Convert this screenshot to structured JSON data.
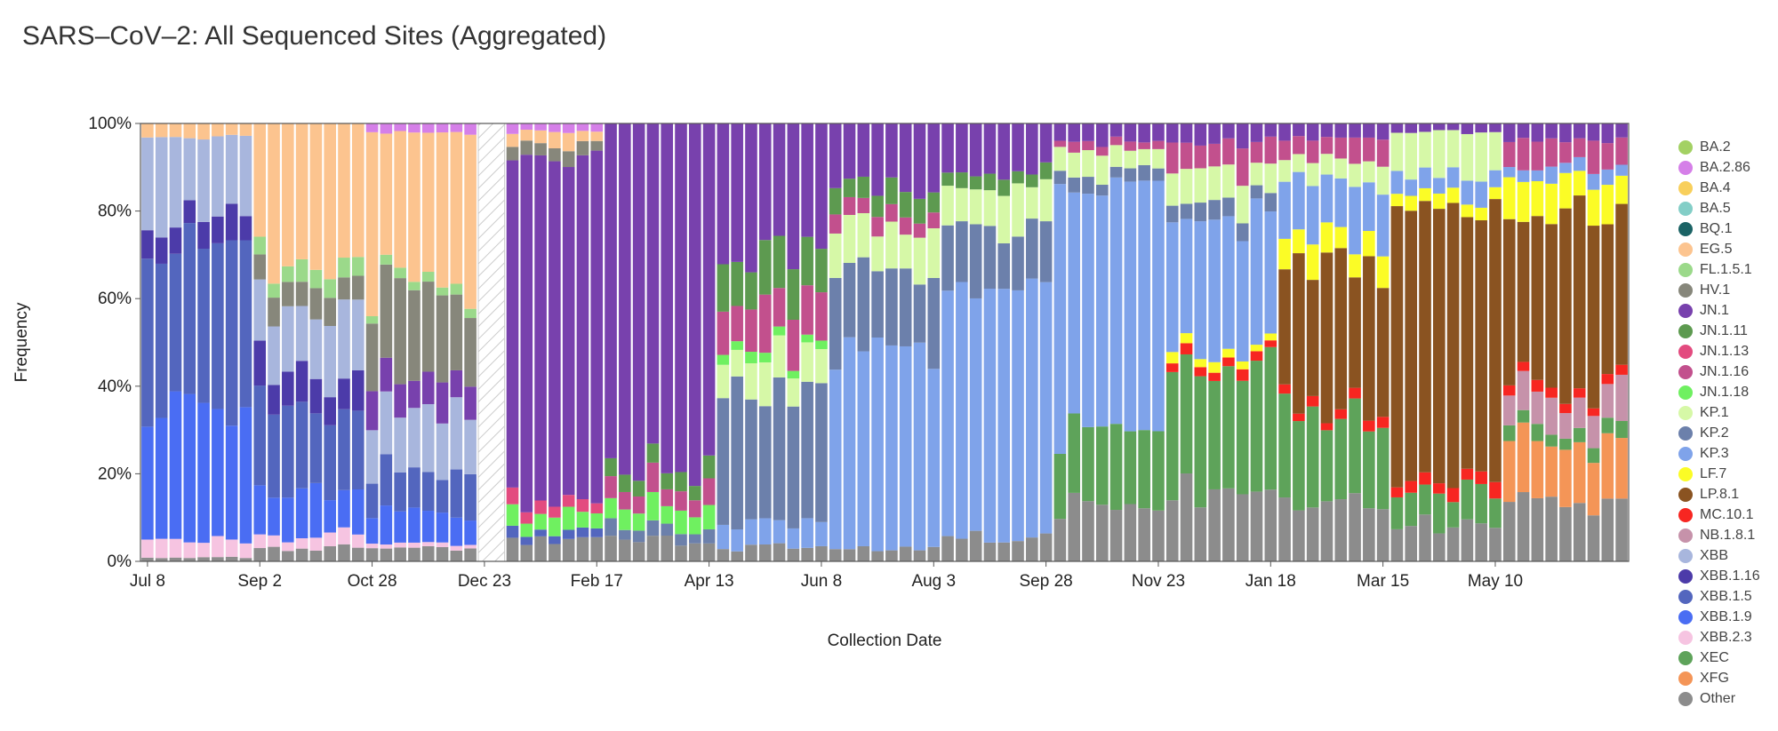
{
  "chart_data": {
    "type": "bar",
    "stacked": true,
    "title": "SARS–CoV–2: All Sequenced Sites (Aggregated)",
    "xlabel": "Collection Date",
    "ylabel": "Frequency",
    "ylim": [
      0,
      1
    ],
    "ytick_labels": [
      "0%",
      "20%",
      "40%",
      "60%",
      "80%",
      "100%"
    ],
    "ytick_values": [
      0,
      0.2,
      0.4,
      0.6,
      0.8,
      1.0
    ],
    "xtick_labels": [
      "Jul 8",
      "Sep 2",
      "Oct 28",
      "Dec 23",
      "Feb 17",
      "Apr 13",
      "Jun 8",
      "Aug 3",
      "Sep 28",
      "Nov 23",
      "Jan 18",
      "Mar 15",
      "May 10"
    ],
    "xtick_week_index": [
      0,
      8,
      16,
      24,
      32,
      40,
      48,
      56,
      64,
      72,
      80,
      88,
      96
    ],
    "n_weeks": 106,
    "missing_weeks": [
      24,
      25
    ],
    "grid": false,
    "legend_position": "right",
    "variants": [
      "BA.2",
      "BA.2.86",
      "BA.4",
      "BA.5",
      "BQ.1",
      "EG.5",
      "FL.1.5.1",
      "HV.1",
      "JN.1",
      "JN.1.11",
      "JN.1.13",
      "JN.1.16",
      "JN.1.18",
      "KP.1",
      "KP.2",
      "KP.3",
      "LF.7",
      "LP.8.1",
      "MC.10.1",
      "NB.1.8.1",
      "XBB",
      "XBB.1.16",
      "XBB.1.5",
      "XBB.1.9",
      "XBB.2.3",
      "XEC",
      "XFG",
      "Other"
    ],
    "colors": {
      "BA.2": "#a3d163",
      "BA.2.86": "#d57fe8",
      "BA.4": "#f8cf5b",
      "BA.5": "#83cec7",
      "BQ.1": "#1b6365",
      "EG.5": "#fcc48f",
      "FL.1.5.1": "#9bd98a",
      "HV.1": "#87877b",
      "JN.1": "#7841ad",
      "JN.1.11": "#5d9a50",
      "JN.1.13": "#e34b7f",
      "JN.1.16": "#c2508d",
      "JN.1.18": "#6ff060",
      "KP.1": "#d6f8a7",
      "KP.2": "#6c80ab",
      "KP.3": "#7fa3ea",
      "LF.7": "#fbfc26",
      "LP.8.1": "#8a5321",
      "MC.10.1": "#f72621",
      "NB.1.8.1": "#c692aa",
      "XBB": "#a8b6dd",
      "XBB.1.16": "#4c3ba9",
      "XBB.1.5": "#5366be",
      "XBB.1.9": "#4a6df3",
      "XBB.2.3": "#f6c4e1",
      "XEC": "#5ea35a",
      "XFG": "#f49557",
      "Other": "#8c8c8c"
    },
    "phases": [
      {
        "weeks": [
          0,
          7
        ],
        "composition": {
          "XBB": 0.2,
          "XBB.1.5": 0.35,
          "XBB.1.9": 0.3,
          "XBB.1.16": 0.07,
          "XBB.2.3": 0.04,
          "EG.5": 0.03,
          "Other": 0.01
        }
      },
      {
        "weeks": [
          8,
          15
        ],
        "composition": {
          "EG.5": 0.32,
          "XBB": 0.14,
          "XBB.1.5": 0.2,
          "XBB.1.9": 0.1,
          "XBB.1.16": 0.08,
          "HV.1": 0.06,
          "FL.1.5.1": 0.04,
          "XBB.2.3": 0.03,
          "Other": 0.03
        }
      },
      {
        "weeks": [
          16,
          23
        ],
        "composition": {
          "EG.5": 0.35,
          "HV.1": 0.18,
          "XBB": 0.14,
          "XBB.1.5": 0.1,
          "JN.1": 0.08,
          "XBB.1.9": 0.07,
          "BA.2.86": 0.02,
          "FL.1.5.1": 0.02,
          "XBB.2.3": 0.01,
          "Other": 0.03
        }
      },
      {
        "weeks": [
          26,
          32
        ],
        "composition": {
          "JN.1": 0.78,
          "JN.1.18": 0.04,
          "EG.5": 0.03,
          "JN.1.13": 0.03,
          "HV.1": 0.03,
          "XBB.1.5": 0.02,
          "BA.2.86": 0.02,
          "Other": 0.05
        }
      },
      {
        "weeks": [
          33,
          40
        ],
        "composition": {
          "JN.1": 0.78,
          "JN.1.11": 0.04,
          "JN.1.16": 0.05,
          "JN.1.18": 0.05,
          "KP.2": 0.03,
          "Other": 0.05
        }
      },
      {
        "weeks": [
          41,
          48
        ],
        "composition": {
          "JN.1": 0.3,
          "KP.2": 0.32,
          "JN.1.11": 0.1,
          "JN.1.16": 0.1,
          "KP.1": 0.08,
          "KP.3": 0.05,
          "JN.1.18": 0.02,
          "Other": 0.03
        }
      },
      {
        "weeks": [
          49,
          56
        ],
        "composition": {
          "KP.3": 0.45,
          "KP.2": 0.18,
          "JN.1": 0.15,
          "KP.1": 0.1,
          "JN.1.11": 0.05,
          "JN.1.16": 0.04,
          "Other": 0.03
        }
      },
      {
        "weeks": [
          57,
          64
        ],
        "composition": {
          "KP.3": 0.62,
          "KP.2": 0.12,
          "JN.1": 0.1,
          "KP.1": 0.08,
          "JN.1.11": 0.03,
          "Other": 0.05
        }
      },
      {
        "weeks": [
          65,
          72
        ],
        "composition": {
          "KP.3": 0.55,
          "XEC": 0.18,
          "KP.1": 0.05,
          "JN.1": 0.04,
          "KP.2": 0.03,
          "JN.1.16": 0.02,
          "Other": 0.13
        }
      },
      {
        "weeks": [
          73,
          80
        ],
        "composition": {
          "XEC": 0.3,
          "KP.3": 0.3,
          "KP.1": 0.07,
          "JN.1.16": 0.06,
          "JN.1": 0.04,
          "KP.2": 0.04,
          "LF.7": 0.02,
          "MC.10.1": 0.02,
          "Other": 0.15
        }
      },
      {
        "weeks": [
          81,
          88
        ],
        "composition": {
          "XEC": 0.2,
          "LP.8.1": 0.32,
          "KP.3": 0.14,
          "LF.7": 0.06,
          "JN.1.16": 0.05,
          "KP.1": 0.05,
          "MC.10.1": 0.02,
          "JN.1": 0.03,
          "Other": 0.13
        }
      },
      {
        "weeks": [
          89,
          96
        ],
        "composition": {
          "LP.8.1": 0.6,
          "XEC": 0.08,
          "KP.3": 0.05,
          "KP.1": 0.1,
          "LF.7": 0.03,
          "MC.10.1": 0.03,
          "JN.1": 0.02,
          "Other": 0.09
        }
      },
      {
        "weeks": [
          97,
          105
        ],
        "composition": {
          "LP.8.1": 0.4,
          "XFG": 0.13,
          "NB.1.8.1": 0.08,
          "LF.7": 0.08,
          "JN.1.16": 0.06,
          "XEC": 0.03,
          "MC.10.1": 0.02,
          "KP.3": 0.03,
          "JN.1": 0.04,
          "Other": 0.13
        }
      }
    ]
  }
}
